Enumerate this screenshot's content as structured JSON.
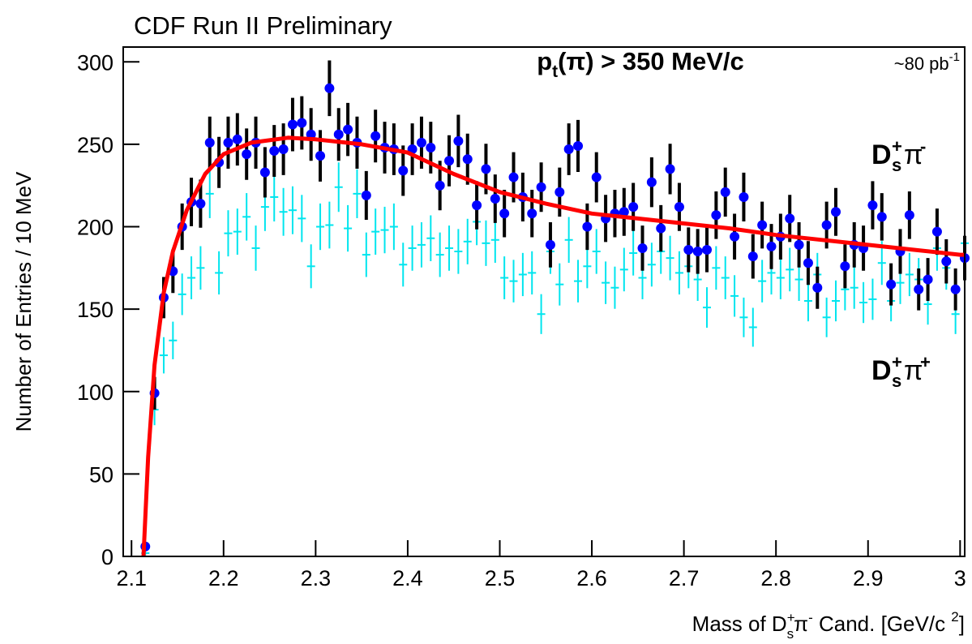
{
  "chart_data": {
    "type": "errorbar",
    "title": "CDF Run II Preliminary",
    "y_label": "Number of Entries / 10 MeV",
    "x_label": [
      "Mass of D",
      "+",
      "s",
      "π",
      "-",
      " Cand. [GeV/c ",
      "2",
      "]"
    ],
    "annotation": [
      "p",
      "t",
      "(π) > 350 MeV/c"
    ],
    "luminosity": [
      "~80 pb",
      "-1"
    ],
    "xlim": [
      2.091,
      3.005
    ],
    "ylim": [
      0,
      309
    ],
    "xticks": [
      2.1,
      2.2,
      2.3,
      2.4,
      2.5,
      2.6,
      2.7,
      2.8,
      2.9,
      3
    ],
    "yticks": [
      0,
      50,
      100,
      150,
      200,
      250,
      300
    ],
    "x": [
      2.115,
      2.125,
      2.135,
      2.145,
      2.155,
      2.165,
      2.175,
      2.185,
      2.195,
      2.205,
      2.215,
      2.225,
      2.235,
      2.245,
      2.255,
      2.265,
      2.275,
      2.285,
      2.295,
      2.305,
      2.315,
      2.325,
      2.335,
      2.345,
      2.355,
      2.365,
      2.375,
      2.385,
      2.395,
      2.405,
      2.415,
      2.425,
      2.435,
      2.445,
      2.455,
      2.465,
      2.475,
      2.485,
      2.495,
      2.505,
      2.515,
      2.525,
      2.535,
      2.545,
      2.555,
      2.565,
      2.575,
      2.585,
      2.595,
      2.605,
      2.615,
      2.625,
      2.635,
      2.645,
      2.655,
      2.665,
      2.675,
      2.685,
      2.695,
      2.705,
      2.715,
      2.725,
      2.735,
      2.745,
      2.755,
      2.765,
      2.775,
      2.785,
      2.795,
      2.805,
      2.815,
      2.825,
      2.835,
      2.845,
      2.855,
      2.865,
      2.875,
      2.885,
      2.895,
      2.905,
      2.915,
      2.925,
      2.935,
      2.945,
      2.955,
      2.965,
      2.975,
      2.985,
      2.995,
      3.005
    ],
    "series": [
      {
        "name": [
          "D",
          "+",
          "s",
          "π",
          "-"
        ],
        "color": "#0000ff",
        "error_color": "#000000",
        "values": [
          6,
          99,
          157,
          173,
          200,
          215,
          214,
          251,
          239,
          251,
          253,
          244,
          251,
          233,
          246,
          247,
          262,
          263,
          256,
          243,
          284,
          256,
          259,
          251,
          219,
          255,
          248,
          247,
          234,
          247,
          251,
          248,
          225,
          240,
          252,
          241,
          213,
          235,
          217,
          208,
          230,
          218,
          208,
          224,
          189,
          221,
          247,
          249,
          200,
          230,
          205,
          208,
          209,
          212,
          187,
          227,
          199,
          235,
          212,
          186,
          185,
          186,
          207,
          221,
          194,
          218,
          182,
          201,
          188,
          194,
          205,
          189,
          178,
          163,
          201,
          209,
          176,
          189,
          187,
          213,
          206,
          165,
          185,
          207,
          162,
          168,
          197,
          179,
          162,
          181
        ],
        "errors": [
          2.4,
          9.9,
          12.5,
          13.2,
          14.1,
          14.7,
          14.6,
          15.8,
          15.5,
          15.8,
          15.9,
          15.6,
          15.8,
          15.3,
          15.7,
          15.7,
          16.2,
          16.2,
          16.0,
          15.6,
          16.9,
          16.0,
          16.1,
          15.8,
          14.8,
          16.0,
          15.7,
          15.7,
          15.3,
          15.7,
          15.8,
          15.7,
          15.0,
          15.5,
          15.9,
          15.5,
          14.6,
          15.3,
          14.7,
          14.4,
          15.2,
          14.8,
          14.4,
          15.0,
          13.7,
          14.9,
          15.7,
          15.8,
          14.1,
          15.2,
          14.3,
          14.4,
          14.5,
          14.6,
          13.7,
          15.1,
          14.1,
          15.3,
          14.6,
          13.6,
          13.6,
          13.6,
          14.4,
          14.9,
          13.9,
          14.8,
          13.5,
          14.2,
          13.7,
          13.9,
          14.3,
          13.7,
          13.3,
          12.8,
          14.2,
          14.5,
          13.3,
          13.7,
          13.7,
          14.6,
          14.4,
          12.8,
          13.6,
          14.4,
          12.7,
          13.0,
          14.0,
          13.4,
          12.7,
          13.5
        ]
      },
      {
        "name": [
          "D",
          "+",
          "s",
          "π",
          "+"
        ],
        "color": "#00e5ee",
        "error_color": "#00e5ee",
        "values": [
          2,
          89,
          122,
          131,
          159,
          169,
          175,
          220,
          172,
          196,
          197,
          206,
          187,
          212,
          218,
          209,
          210,
          205,
          176,
          200,
          201,
          224,
          199,
          220,
          183,
          197,
          198,
          200,
          177,
          187,
          189,
          193,
          183,
          187,
          185,
          191,
          203,
          190,
          192,
          169,
          167,
          171,
          172,
          147,
          185,
          165,
          192,
          167,
          176,
          185,
          166,
          163,
          174,
          184,
          169,
          177,
          185,
          181,
          172,
          176,
          168,
          151,
          175,
          169,
          158,
          145,
          139,
          167,
          172,
          169,
          174,
          168,
          155,
          171,
          145,
          155,
          162,
          163,
          154,
          156,
          178,
          155,
          166,
          171,
          168,
          153,
          187,
          175,
          147,
          190
        ],
        "errors": [
          1.4,
          9.4,
          11.0,
          11.4,
          12.6,
          13.0,
          13.2,
          14.8,
          13.1,
          14.0,
          14.0,
          14.4,
          13.7,
          14.6,
          14.8,
          14.5,
          14.5,
          14.3,
          13.3,
          14.1,
          14.2,
          15.0,
          14.1,
          14.8,
          13.5,
          14.0,
          14.1,
          14.1,
          13.3,
          13.7,
          13.7,
          13.9,
          13.5,
          13.7,
          13.6,
          13.8,
          14.2,
          13.8,
          13.9,
          13.0,
          12.9,
          13.1,
          13.1,
          12.1,
          13.6,
          12.8,
          13.9,
          12.9,
          13.3,
          13.6,
          12.9,
          12.8,
          13.2,
          13.6,
          13.0,
          13.3,
          13.6,
          13.5,
          13.1,
          13.3,
          13.0,
          12.3,
          13.2,
          13.0,
          12.6,
          12.0,
          11.8,
          12.9,
          13.1,
          13.0,
          13.2,
          13.0,
          12.4,
          13.1,
          12.0,
          12.4,
          12.7,
          12.8,
          12.4,
          12.5,
          13.3,
          12.4,
          12.9,
          13.1,
          13.0,
          12.4,
          13.7,
          13.2,
          12.1,
          13.8
        ]
      }
    ],
    "fit": {
      "color": "#ff0000",
      "x": [
        2.113,
        2.118,
        2.125,
        2.135,
        2.145,
        2.16,
        2.18,
        2.2,
        2.23,
        2.27,
        2.3,
        2.35,
        2.4,
        2.45,
        2.5,
        2.55,
        2.6,
        2.65,
        2.7,
        2.75,
        2.8,
        2.85,
        2.9,
        2.95,
        3.0,
        3.005
      ],
      "values": [
        0,
        60,
        116,
        160,
        185,
        210,
        232,
        244,
        251,
        254,
        253,
        250,
        245,
        232,
        221,
        214,
        208,
        205,
        202,
        199,
        195,
        192,
        189,
        186,
        183,
        183
      ]
    }
  }
}
